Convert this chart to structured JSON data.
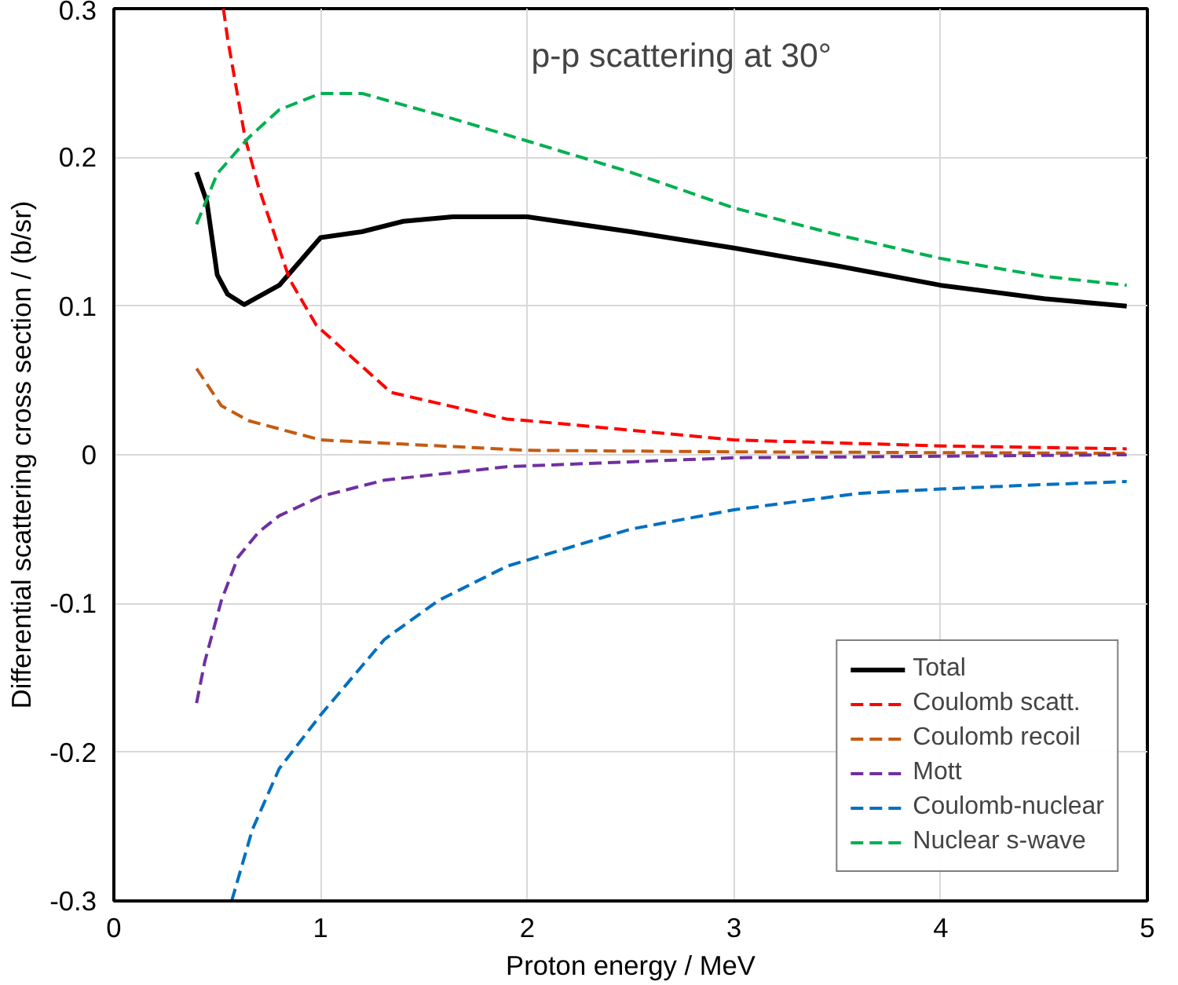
{
  "chart_data": {
    "type": "line",
    "xlabel": "Proton energy / MeV",
    "ylabel": "Differential scattering cross section / (b/sr)",
    "annotations": [
      "p-p scattering at 30°"
    ],
    "xlim": [
      0,
      5
    ],
    "ylim": [
      -0.3,
      0.3
    ],
    "xticks": [
      0,
      1,
      2,
      3,
      4,
      5
    ],
    "yticks": [
      -0.3,
      -0.2,
      -0.1,
      0,
      0.1,
      0.2,
      0.3
    ],
    "grid": true,
    "legend": "bottom right",
    "marker": "none",
    "series": [
      {
        "name": "Total",
        "color": "#000000",
        "line_style": "solid",
        "x": [
          0.4,
          0.45,
          0.5,
          0.55,
          0.63,
          0.8,
          1.0,
          1.2,
          1.4,
          1.64,
          2.0,
          2.5,
          3.0,
          3.5,
          4.0,
          4.5,
          4.9
        ],
        "values": [
          0.19,
          0.17,
          0.121,
          0.108,
          0.101,
          0.114,
          0.146,
          0.15,
          0.157,
          0.16,
          0.16,
          0.15,
          0.139,
          0.127,
          0.114,
          0.105,
          0.1
        ]
      },
      {
        "name": "Coulomb scatt.",
        "color": "#ff0000",
        "line_style": "dashed",
        "x": [
          0.53,
          0.55,
          0.635,
          0.7,
          0.85,
          0.98,
          1.34,
          1.9,
          2.0,
          3.0,
          4.0,
          4.9
        ],
        "values": [
          0.3,
          0.28,
          0.213,
          0.18,
          0.118,
          0.087,
          0.042,
          0.024,
          0.023,
          0.01,
          0.006,
          0.004
        ]
      },
      {
        "name": "Coulomb recoil",
        "color": "#c55a11",
        "line_style": "dashed",
        "x": [
          0.4,
          0.52,
          0.65,
          1.0,
          2.0,
          3.0,
          4.9
        ],
        "values": [
          0.058,
          0.033,
          0.023,
          0.01,
          0.003,
          0.002,
          0.001
        ]
      },
      {
        "name": "Mott",
        "color": "#7030a0",
        "line_style": "dashed",
        "x": [
          0.4,
          0.44,
          0.52,
          0.6,
          0.7,
          0.8,
          1.0,
          1.31,
          1.9,
          3.0,
          4.9
        ],
        "values": [
          -0.167,
          -0.139,
          -0.098,
          -0.069,
          -0.052,
          -0.041,
          -0.028,
          -0.017,
          -0.008,
          -0.002,
          0.0
        ]
      },
      {
        "name": "Coulomb-nuclear",
        "color": "#0070c0",
        "line_style": "dashed",
        "x": [
          0.57,
          0.67,
          0.8,
          1.0,
          1.31,
          1.57,
          1.9,
          2.5,
          3.0,
          3.6,
          4.0,
          4.5,
          4.9
        ],
        "values": [
          -0.3,
          -0.252,
          -0.211,
          -0.175,
          -0.124,
          -0.098,
          -0.075,
          -0.05,
          -0.037,
          -0.026,
          -0.023,
          -0.02,
          -0.018
        ]
      },
      {
        "name": "Nuclear s-wave",
        "color": "#00b050",
        "line_style": "dashed",
        "x": [
          0.4,
          0.5,
          0.65,
          0.8,
          1.0,
          1.2,
          1.64,
          2.0,
          2.5,
          3.0,
          3.5,
          4.0,
          4.5,
          4.9
        ],
        "values": [
          0.155,
          0.189,
          0.213,
          0.232,
          0.243,
          0.243,
          0.226,
          0.211,
          0.19,
          0.166,
          0.148,
          0.132,
          0.12,
          0.114
        ]
      }
    ]
  }
}
